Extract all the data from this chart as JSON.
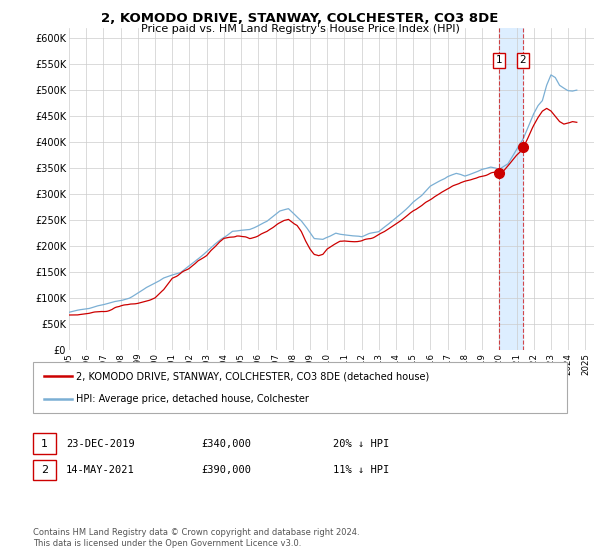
{
  "title": "2, KOMODO DRIVE, STANWAY, COLCHESTER, CO3 8DE",
  "subtitle": "Price paid vs. HM Land Registry's House Price Index (HPI)",
  "ylabel_ticks": [
    "£0",
    "£50K",
    "£100K",
    "£150K",
    "£200K",
    "£250K",
    "£300K",
    "£350K",
    "£400K",
    "£450K",
    "£500K",
    "£550K",
    "£600K"
  ],
  "ytick_values": [
    0,
    50000,
    100000,
    150000,
    200000,
    250000,
    300000,
    350000,
    400000,
    450000,
    500000,
    550000,
    600000
  ],
  "xlim": [
    1995.0,
    2025.5
  ],
  "ylim": [
    0,
    620000
  ],
  "hpi_color": "#7bafd4",
  "price_color": "#cc0000",
  "annotation_color": "#cc0000",
  "shade_color": "#ddeeff",
  "marker1_date": 2019.97,
  "marker1_price": 340000,
  "marker1_label": "1",
  "marker2_date": 2021.37,
  "marker2_price": 390000,
  "marker2_label": "2",
  "footer": "Contains HM Land Registry data © Crown copyright and database right 2024.\nThis data is licensed under the Open Government Licence v3.0.",
  "legend_line1": "2, KOMODO DRIVE, STANWAY, COLCHESTER, CO3 8DE (detached house)",
  "legend_line2": "HPI: Average price, detached house, Colchester",
  "table_row1": [
    "1",
    "23-DEC-2019",
    "£340,000",
    "20% ↓ HPI"
  ],
  "table_row2": [
    "2",
    "14-MAY-2021",
    "£390,000",
    "11% ↓ HPI"
  ]
}
